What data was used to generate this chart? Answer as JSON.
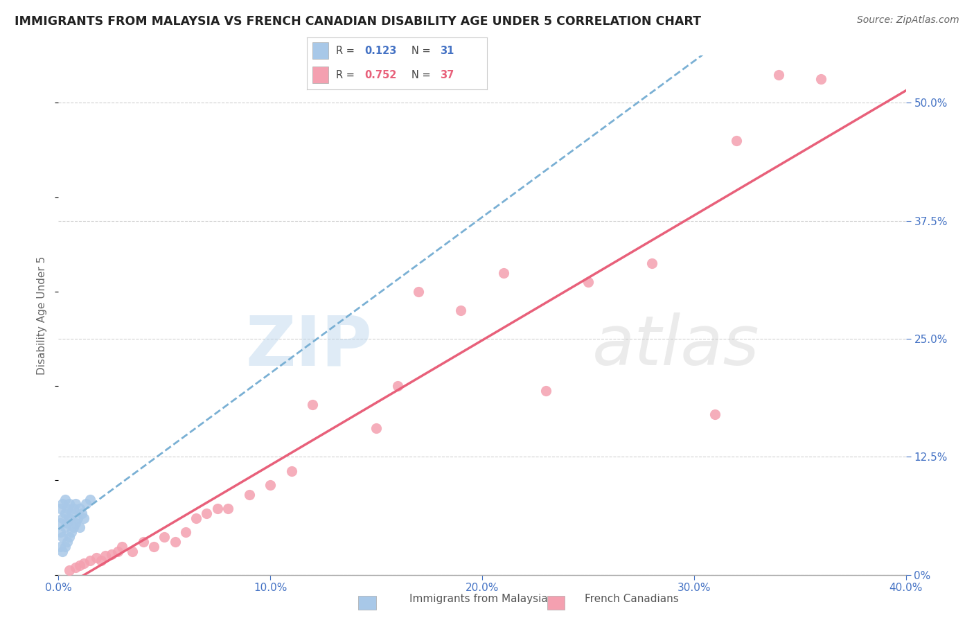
{
  "title": "IMMIGRANTS FROM MALAYSIA VS FRENCH CANADIAN DISABILITY AGE UNDER 5 CORRELATION CHART",
  "source": "Source: ZipAtlas.com",
  "ylabel": "Disability Age Under 5",
  "legend1_label": "Immigrants from Malaysia",
  "legend2_label": "French Canadians",
  "R1": 0.123,
  "N1": 31,
  "R2": 0.752,
  "N2": 37,
  "xlim": [
    0.0,
    0.4
  ],
  "ylim": [
    0.0,
    0.55
  ],
  "x_ticks": [
    0.0,
    0.1,
    0.2,
    0.3,
    0.4
  ],
  "x_tick_labels": [
    "0.0%",
    "10.0%",
    "20.0%",
    "30.0%",
    "40.0%"
  ],
  "y_ticks_right": [
    0.0,
    0.125,
    0.25,
    0.375,
    0.5
  ],
  "y_tick_labels_right": [
    "0%",
    "12.5%",
    "25.0%",
    "37.5%",
    "50.0%"
  ],
  "color_blue": "#a8c8e8",
  "color_blue_line": "#7ab0d4",
  "color_pink": "#f4a0b0",
  "color_pink_line": "#e8607a",
  "color_axis": "#4472c4",
  "watermark_zip": "ZIP",
  "watermark_atlas": "atlas",
  "background_color": "#ffffff",
  "grid_color": "#d0d0d0",
  "scatter_malaysia_x": [
    0.001,
    0.001,
    0.001,
    0.001,
    0.002,
    0.002,
    0.002,
    0.002,
    0.003,
    0.003,
    0.003,
    0.003,
    0.004,
    0.004,
    0.004,
    0.005,
    0.005,
    0.005,
    0.006,
    0.006,
    0.007,
    0.007,
    0.008,
    0.008,
    0.009,
    0.01,
    0.01,
    0.011,
    0.012,
    0.013,
    0.015
  ],
  "scatter_malaysia_y": [
    0.03,
    0.045,
    0.055,
    0.07,
    0.025,
    0.04,
    0.06,
    0.075,
    0.03,
    0.05,
    0.065,
    0.08,
    0.035,
    0.055,
    0.07,
    0.04,
    0.06,
    0.075,
    0.045,
    0.065,
    0.05,
    0.07,
    0.055,
    0.075,
    0.06,
    0.05,
    0.07,
    0.065,
    0.06,
    0.075,
    0.08
  ],
  "scatter_french_x": [
    0.005,
    0.008,
    0.01,
    0.012,
    0.015,
    0.018,
    0.02,
    0.022,
    0.025,
    0.028,
    0.03,
    0.035,
    0.04,
    0.045,
    0.05,
    0.055,
    0.06,
    0.065,
    0.07,
    0.075,
    0.08,
    0.09,
    0.1,
    0.11,
    0.12,
    0.15,
    0.16,
    0.17,
    0.19,
    0.21,
    0.23,
    0.25,
    0.28,
    0.31,
    0.32,
    0.34,
    0.36
  ],
  "scatter_french_y": [
    0.005,
    0.008,
    0.01,
    0.012,
    0.015,
    0.018,
    0.015,
    0.02,
    0.022,
    0.025,
    0.03,
    0.025,
    0.035,
    0.03,
    0.04,
    0.035,
    0.045,
    0.06,
    0.065,
    0.07,
    0.07,
    0.085,
    0.095,
    0.11,
    0.18,
    0.155,
    0.2,
    0.3,
    0.28,
    0.32,
    0.195,
    0.31,
    0.33,
    0.17,
    0.46,
    0.53,
    0.525
  ]
}
